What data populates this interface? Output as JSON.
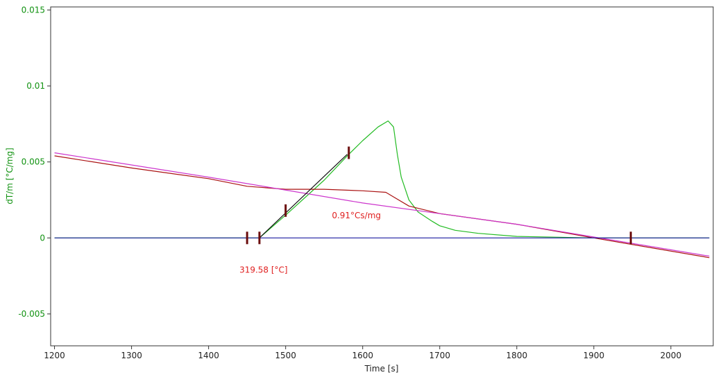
{
  "chart_data": {
    "type": "line",
    "title": "",
    "xlabel": "Time [s]",
    "ylabel": "dT/m  [°C/mg]",
    "xlim": [
      1195,
      2055
    ],
    "ylim": [
      -0.0071,
      0.0152
    ],
    "x_ticks": [
      1200,
      1300,
      1400,
      1500,
      1600,
      1700,
      1800,
      1900,
      2000
    ],
    "x_tick_labels": [
      "1200",
      "1300",
      "1400",
      "1500",
      "1600",
      "1700",
      "1800",
      "1900",
      "2000"
    ],
    "y_ticks": [
      -0.005,
      0,
      0.005,
      0.01,
      0.015
    ],
    "y_tick_labels": [
      "-0.005",
      "0",
      "0.005",
      "0.01",
      "0.015"
    ],
    "grid": false,
    "colors": {
      "measured": "#22bb22",
      "integral": "#aa1111",
      "baseline_fit": "#cc33cc",
      "zero_line": "#1a1aa0",
      "onset_tangent": "#111111",
      "markers": "#6b0d0d",
      "annotation": "#e02020",
      "y_axis_text": "#119211"
    },
    "series": [
      {
        "key": "measured",
        "values": [
          [
            1200,
            0
          ],
          [
            1450,
            0
          ],
          [
            1466,
            0
          ],
          [
            1500,
            0.0015
          ],
          [
            1550,
            0.0038
          ],
          [
            1580,
            0.0054
          ],
          [
            1600,
            0.0064
          ],
          [
            1620,
            0.0073
          ],
          [
            1633,
            0.0077
          ],
          [
            1640,
            0.0073
          ],
          [
            1645,
            0.0055
          ],
          [
            1650,
            0.004
          ],
          [
            1660,
            0.0025
          ],
          [
            1672,
            0.0017
          ],
          [
            1690,
            0.0011
          ],
          [
            1700,
            0.0008
          ],
          [
            1720,
            0.0005
          ],
          [
            1750,
            0.0003
          ],
          [
            1800,
            0.0001
          ],
          [
            1850,
            5e-05
          ],
          [
            1900,
            0
          ],
          [
            2050,
            0
          ]
        ]
      },
      {
        "key": "integral",
        "values": [
          [
            1200,
            0.0054
          ],
          [
            1300,
            0.0046
          ],
          [
            1400,
            0.0039
          ],
          [
            1450,
            0.0034
          ],
          [
            1500,
            0.0032
          ],
          [
            1550,
            0.0032
          ],
          [
            1600,
            0.0031
          ],
          [
            1630,
            0.003
          ],
          [
            1640,
            0.0027
          ],
          [
            1660,
            0.0021
          ],
          [
            1700,
            0.0016
          ],
          [
            1800,
            0.0009
          ],
          [
            1900,
            0
          ],
          [
            2050,
            -0.0013
          ]
        ]
      },
      {
        "key": "baseline_fit",
        "values": [
          [
            1200,
            0.0056
          ],
          [
            1400,
            0.004
          ],
          [
            1600,
            0.0023
          ],
          [
            1800,
            0.0009
          ],
          [
            2050,
            -0.0012
          ]
        ]
      },
      {
        "key": "zero_line",
        "values": [
          [
            1200,
            0
          ],
          [
            2050,
            0
          ]
        ]
      },
      {
        "key": "onset_tangent",
        "values": [
          [
            1466,
            0
          ],
          [
            1580,
            0.0055
          ]
        ]
      }
    ],
    "markers": [
      {
        "x": 1450,
        "y": 0
      },
      {
        "x": 1466,
        "y": 0
      },
      {
        "x": 1500,
        "y": 0.0018
      },
      {
        "x": 1582,
        "y": 0.0056
      },
      {
        "x": 1948,
        "y": 0
      }
    ],
    "annotations": [
      {
        "text": "0.91°Cs/mg",
        "x": 1560,
        "y": 0.0013
      },
      {
        "text": "319.58 [°C]",
        "x": 1440,
        "y": -0.0023
      }
    ]
  }
}
